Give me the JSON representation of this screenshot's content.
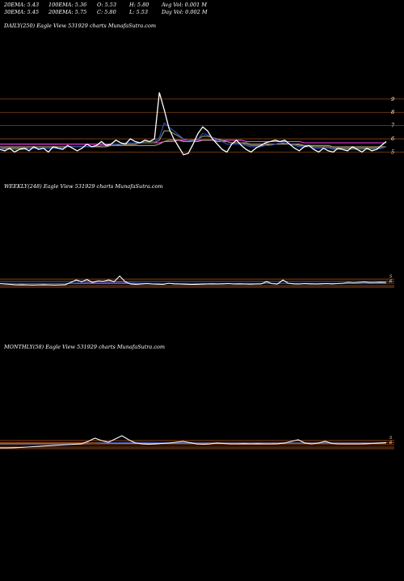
{
  "header": {
    "ema20": "20EMA: 5.43",
    "ema100": "100EMA: 5.36",
    "open": "O: 5.53",
    "high": "H: 5.80",
    "avg_vol": "Avg Vol: 0.001 M",
    "ema30": "30EMA: 5.45",
    "ema200": "200EMA: 5.75",
    "close": "C: 5.80",
    "low": "L: 5.53",
    "day_vol": "Day Vol: 0.002  M"
  },
  "panels": {
    "daily": {
      "label": "DAILY(250) Eagle   View  531929 charts MunafaSutra.com"
    },
    "weekly": {
      "label": "WEEKLY(248) Eagle   View  531929 charts MunafaSutra.com"
    },
    "monthly": {
      "label": "MONTHLY(58) Eagle   View  531929 charts MunafaSutra.com"
    }
  },
  "colors": {
    "price": "#ffffff",
    "ema20": "#2a52be",
    "ema30": "#9a9a66",
    "ema100": "#b0a080",
    "ema200": "#ff3df5",
    "grid": "#8b4513",
    "background": "#000000"
  },
  "chart_data": [
    {
      "type": "line",
      "panel": "daily",
      "y_ticks": [
        5,
        6,
        7,
        8,
        9
      ],
      "ylim": [
        4.3,
        9.9
      ],
      "grid": true,
      "series": [
        {
          "key": "price",
          "color": "#ffffff",
          "values": [
            5.2,
            5.1,
            5.3,
            5.0,
            5.2,
            5.3,
            5.1,
            5.4,
            5.2,
            5.3,
            5.0,
            5.4,
            5.3,
            5.2,
            5.5,
            5.3,
            5.1,
            5.3,
            5.6,
            5.4,
            5.5,
            5.8,
            5.5,
            5.6,
            5.9,
            5.7,
            5.6,
            6.0,
            5.8,
            5.7,
            5.9,
            5.8,
            6.0,
            9.5,
            8.2,
            6.8,
            6.0,
            5.4,
            4.8,
            4.9,
            5.6,
            6.4,
            6.9,
            6.6,
            6.0,
            5.6,
            5.2,
            5.0,
            5.6,
            5.9,
            5.5,
            5.2,
            5.0,
            5.3,
            5.5,
            5.7,
            5.8,
            5.9,
            5.8,
            5.9,
            5.6,
            5.3,
            5.1,
            5.4,
            5.5,
            5.2,
            5.0,
            5.3,
            5.1,
            5.0,
            5.3,
            5.2,
            5.1,
            5.4,
            5.2,
            5.0,
            5.3,
            5.1,
            5.2,
            5.5,
            5.8
          ]
        },
        {
          "key": "ema20",
          "color": "#2a52be",
          "values": [
            5.3,
            5.2,
            5.2,
            5.2,
            5.2,
            5.2,
            5.3,
            5.3,
            5.3,
            5.3,
            5.3,
            5.3,
            5.3,
            5.3,
            5.4,
            5.4,
            5.4,
            5.4,
            5.4,
            5.4,
            5.5,
            5.5,
            5.5,
            5.6,
            5.6,
            5.6,
            5.7,
            5.7,
            5.7,
            5.7,
            5.8,
            5.8,
            5.8,
            6.1,
            7.2,
            6.9,
            6.6,
            6.3,
            6.0,
            5.9,
            5.8,
            6.0,
            6.4,
            6.3,
            6.1,
            5.9,
            5.8,
            5.6,
            5.6,
            5.6,
            5.6,
            5.5,
            5.4,
            5.4,
            5.4,
            5.5,
            5.5,
            5.6,
            5.7,
            5.7,
            5.6,
            5.5,
            5.4,
            5.4,
            5.4,
            5.3,
            5.3,
            5.3,
            5.3,
            5.2,
            5.2,
            5.2,
            5.2,
            5.2,
            5.2,
            5.2,
            5.2,
            5.2,
            5.2,
            5.3,
            5.4
          ]
        },
        {
          "key": "ema30",
          "color": "#9a9a66",
          "values": [
            5.3,
            5.3,
            5.3,
            5.3,
            5.3,
            5.3,
            5.3,
            5.3,
            5.3,
            5.3,
            5.3,
            5.3,
            5.3,
            5.3,
            5.4,
            5.4,
            5.4,
            5.4,
            5.4,
            5.4,
            5.4,
            5.5,
            5.5,
            5.5,
            5.5,
            5.6,
            5.6,
            5.6,
            5.6,
            5.7,
            5.7,
            5.7,
            5.7,
            5.9,
            6.6,
            6.6,
            6.4,
            6.2,
            6.0,
            5.9,
            5.9,
            6.0,
            6.2,
            6.2,
            6.1,
            6.0,
            5.9,
            5.8,
            5.7,
            5.7,
            5.7,
            5.6,
            5.5,
            5.5,
            5.5,
            5.5,
            5.6,
            5.6,
            5.6,
            5.7,
            5.6,
            5.6,
            5.5,
            5.5,
            5.5,
            5.4,
            5.4,
            5.4,
            5.4,
            5.3,
            5.3,
            5.3,
            5.3,
            5.3,
            5.3,
            5.3,
            5.3,
            5.3,
            5.3,
            5.3,
            5.4
          ]
        },
        {
          "key": "ema100",
          "color": "#b0a080",
          "values": [
            5.4,
            5.4,
            5.4,
            5.4,
            5.4,
            5.4,
            5.4,
            5.4,
            5.4,
            5.4,
            5.4,
            5.4,
            5.4,
            5.4,
            5.4,
            5.4,
            5.4,
            5.4,
            5.4,
            5.4,
            5.4,
            5.4,
            5.4,
            5.5,
            5.5,
            5.5,
            5.5,
            5.5,
            5.5,
            5.5,
            5.5,
            5.5,
            5.5,
            5.6,
            5.8,
            5.9,
            5.9,
            5.9,
            5.8,
            5.8,
            5.8,
            5.8,
            5.9,
            5.9,
            5.9,
            5.8,
            5.8,
            5.8,
            5.7,
            5.7,
            5.7,
            5.7,
            5.6,
            5.6,
            5.6,
            5.6,
            5.6,
            5.6,
            5.6,
            5.6,
            5.6,
            5.6,
            5.6,
            5.5,
            5.5,
            5.5,
            5.5,
            5.5,
            5.5,
            5.4,
            5.4,
            5.4,
            5.4,
            5.4,
            5.4,
            5.4,
            5.4,
            5.4,
            5.4,
            5.4,
            5.4
          ]
        },
        {
          "key": "ema200",
          "color": "#ff3df5",
          "values": [
            5.6,
            5.6,
            5.6,
            5.6,
            5.6,
            5.6,
            5.6,
            5.6,
            5.6,
            5.6,
            5.6,
            5.6,
            5.6,
            5.6,
            5.6,
            5.6,
            5.6,
            5.6,
            5.6,
            5.6,
            5.6,
            5.6,
            5.6,
            5.6,
            5.6,
            5.6,
            5.6,
            5.6,
            5.6,
            5.7,
            5.7,
            5.7,
            5.7,
            5.7,
            5.8,
            5.8,
            5.8,
            5.9,
            5.9,
            5.9,
            5.9,
            5.9,
            5.9,
            5.9,
            5.9,
            5.9,
            5.9,
            5.9,
            5.9,
            5.9,
            5.9,
            5.8,
            5.8,
            5.8,
            5.8,
            5.8,
            5.8,
            5.8,
            5.8,
            5.8,
            5.8,
            5.8,
            5.8,
            5.7,
            5.7,
            5.7,
            5.7,
            5.7,
            5.7,
            5.7,
            5.7,
            5.7,
            5.7,
            5.7,
            5.7,
            5.7,
            5.7,
            5.7,
            5.7,
            5.7,
            5.7
          ]
        }
      ]
    },
    {
      "type": "line",
      "panel": "weekly",
      "y_ticks": [
        5,
        6
      ],
      "grid": true,
      "series": [
        {
          "key": "price",
          "color": "#ffffff",
          "values": [
            0.45,
            0.4,
            0.35,
            0.3,
            0.32,
            0.3,
            0.28,
            0.3,
            0.32,
            0.3,
            0.28,
            0.3,
            0.32,
            0.6,
            0.9,
            0.7,
            0.95,
            0.6,
            0.8,
            0.75,
            0.9,
            0.7,
            1.4,
            0.7,
            0.4,
            0.35,
            0.4,
            0.45,
            0.4,
            0.38,
            0.35,
            0.5,
            0.42,
            0.4,
            0.38,
            0.35,
            0.36,
            0.38,
            0.4,
            0.42,
            0.4,
            0.42,
            0.45,
            0.4,
            0.42,
            0.4,
            0.38,
            0.4,
            0.42,
            0.7,
            0.45,
            0.4,
            0.9,
            0.5,
            0.42,
            0.4,
            0.45,
            0.42,
            0.4,
            0.42,
            0.45,
            0.42,
            0.45,
            0.5,
            0.6,
            0.55,
            0.6,
            0.65,
            0.58,
            0.6,
            0.62,
            0.6
          ]
        },
        {
          "key": "ema20",
          "color": "#2a52be",
          "values": [
            0.5,
            0.5,
            0.5,
            0.5,
            0.5,
            0.5,
            0.5,
            0.5,
            0.5,
            0.5,
            0.5,
            0.5,
            0.5,
            0.52,
            0.55,
            0.58,
            0.6,
            0.62,
            0.62,
            0.62,
            0.63,
            0.62,
            0.65,
            0.6,
            0.58,
            0.55,
            0.53,
            0.52,
            0.5,
            0.5,
            0.5,
            0.5,
            0.5,
            0.5,
            0.5,
            0.5,
            0.5,
            0.5,
            0.5,
            0.5,
            0.5,
            0.5,
            0.5,
            0.5,
            0.5,
            0.5,
            0.5,
            0.5,
            0.5,
            0.5,
            0.5,
            0.5,
            0.5,
            0.5,
            0.5,
            0.5,
            0.5,
            0.5,
            0.5,
            0.5,
            0.5,
            0.5,
            0.5,
            0.5,
            0.5,
            0.5,
            0.5,
            0.5,
            0.5,
            0.5,
            0.5,
            0.5
          ]
        },
        {
          "key": "ema200",
          "color": "#ff3df5",
          "values": [
            0.48,
            0.48,
            0.48,
            0.48,
            0.48,
            0.48,
            0.48,
            0.48,
            0.48,
            0.48,
            0.48,
            0.48,
            0.48,
            0.48,
            0.48,
            0.48,
            0.48,
            0.48,
            0.48,
            0.48,
            0.48,
            0.48,
            0.48,
            0.48,
            0.48,
            0.48,
            0.48,
            0.48,
            0.48,
            0.48,
            0.48,
            0.48,
            0.48,
            0.48,
            0.48,
            0.48,
            0.48,
            0.48,
            0.48,
            0.48,
            0.48,
            0.48,
            0.48,
            0.48,
            0.48,
            0.48,
            0.48,
            0.48,
            0.48,
            0.48,
            0.48,
            0.48,
            0.48,
            0.48,
            0.48,
            0.48,
            0.48,
            0.48,
            0.48,
            0.48,
            0.48,
            0.48,
            0.48,
            0.48,
            0.48,
            0.48,
            0.48,
            0.48,
            0.48,
            0.48,
            0.48,
            0.48
          ]
        }
      ]
    },
    {
      "type": "line",
      "panel": "monthly",
      "y_ticks": [
        5,
        6
      ],
      "grid": true,
      "series": [
        {
          "key": "price",
          "color": "#ffffff",
          "values": [
            0.1,
            0.1,
            0.12,
            0.15,
            0.2,
            0.25,
            0.3,
            0.35,
            0.4,
            0.45,
            0.5,
            0.55,
            0.6,
            0.9,
            1.3,
            1.0,
            0.8,
            1.2,
            1.6,
            1.1,
            0.7,
            0.6,
            0.55,
            0.6,
            0.65,
            0.7,
            0.8,
            0.9,
            0.75,
            0.6,
            0.55,
            0.6,
            0.7,
            0.65,
            0.6,
            0.6,
            0.62,
            0.6,
            0.62,
            0.6,
            0.6,
            0.62,
            0.7,
            0.9,
            1.1,
            0.7,
            0.6,
            0.7,
            0.9,
            0.65,
            0.6,
            0.6,
            0.6,
            0.6,
            0.62,
            0.65,
            0.7,
            0.75
          ]
        },
        {
          "key": "ema20",
          "color": "#2a52be",
          "values": [
            0.6,
            0.6,
            0.6,
            0.6,
            0.6,
            0.6,
            0.6,
            0.6,
            0.6,
            0.6,
            0.6,
            0.6,
            0.6,
            0.62,
            0.66,
            0.7,
            0.72,
            0.74,
            0.76,
            0.78,
            0.78,
            0.78,
            0.76,
            0.75,
            0.74,
            0.73,
            0.72,
            0.72,
            0.72,
            0.71,
            0.7,
            0.7,
            0.7,
            0.7,
            0.7,
            0.7,
            0.7,
            0.7,
            0.7,
            0.7,
            0.7,
            0.7,
            0.7,
            0.7,
            0.7,
            0.7,
            0.7,
            0.7,
            0.7,
            0.7,
            0.7,
            0.7,
            0.7,
            0.7,
            0.7,
            0.7,
            0.7,
            0.7
          ]
        },
        {
          "key": "ema200",
          "color": "#ff3df5",
          "values": [
            0.65,
            0.65,
            0.65,
            0.65,
            0.65,
            0.65,
            0.65,
            0.65,
            0.65,
            0.65,
            0.65,
            0.65,
            0.65,
            0.65,
            0.65,
            0.65,
            0.65,
            0.65,
            0.65,
            0.65,
            0.65,
            0.65,
            0.65,
            0.65,
            0.65,
            0.65,
            0.65,
            0.65,
            0.65,
            0.65,
            0.65,
            0.65,
            0.65,
            0.65,
            0.65,
            0.65,
            0.65,
            0.65,
            0.65,
            0.65,
            0.65,
            0.65,
            0.65,
            0.65,
            0.65,
            0.65,
            0.65,
            0.65,
            0.65,
            0.65,
            0.65,
            0.65,
            0.65,
            0.65,
            0.65,
            0.65,
            0.65,
            0.65
          ]
        }
      ]
    }
  ]
}
